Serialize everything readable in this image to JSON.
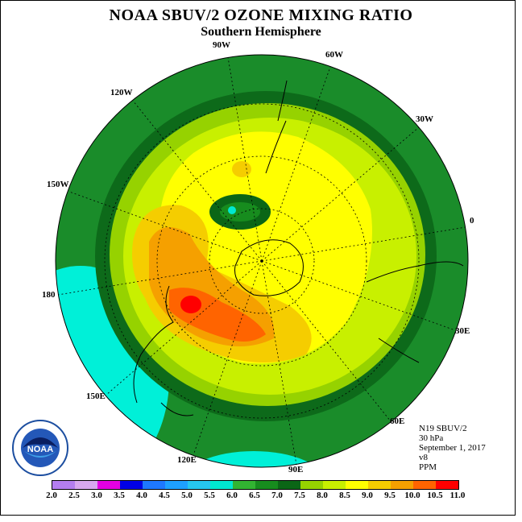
{
  "header": {
    "title": "NOAA SBUV/2 OZONE MIXING RATIO",
    "subtitle": "Southern Hemisphere"
  },
  "longitude_labels": [
    "90W",
    "60W",
    "30W",
    "0",
    "30E",
    "60E",
    "90E",
    "120E",
    "150E",
    "180",
    "150W",
    "120W"
  ],
  "info": {
    "satellite": "N19 SBUV/2",
    "level": "30 hPa",
    "date": "September 1, 2017",
    "version": "v8",
    "units": "PPM"
  },
  "colorbar": {
    "ticks": [
      "2.0",
      "2.5",
      "3.0",
      "3.5",
      "4.0",
      "4.5",
      "5.0",
      "5.5",
      "6.0",
      "6.5",
      "7.0",
      "7.5",
      "8.0",
      "8.5",
      "9.0",
      "9.5",
      "10.0",
      "10.5",
      "11.0"
    ],
    "colors": [
      "#b47ef0",
      "#d8a8f0",
      "#e400e4",
      "#0000e6",
      "#1e78ff",
      "#1ea0ff",
      "#26c6f0",
      "#00e8d0",
      "#32b432",
      "#178c1e",
      "#0b6616",
      "#96d200",
      "#c8f000",
      "#ffff00",
      "#f5cd00",
      "#f5a000",
      "#ff6400",
      "#ff0000",
      "#8c5028"
    ]
  },
  "logo": {
    "text": "NOAA"
  }
}
